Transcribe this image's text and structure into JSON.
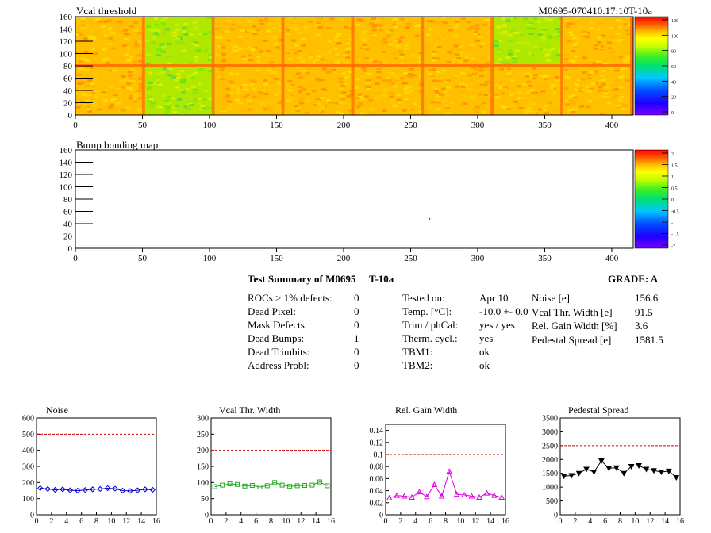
{
  "header": {
    "title_left": "Vcal threshold",
    "title_right": "M0695-070410.17:10T-10a"
  },
  "maps": [
    {
      "id": "vcal",
      "title": "Vcal threshold",
      "x_ticks": [
        0,
        50,
        100,
        150,
        200,
        250,
        300,
        350,
        400
      ],
      "y_ticks": [
        0,
        20,
        40,
        60,
        80,
        100,
        120,
        140,
        160
      ],
      "xlim": [
        0,
        416
      ],
      "ylim": [
        0,
        160
      ],
      "z_ticks": [
        "0",
        "20",
        "40",
        "60",
        "80",
        "100",
        "120"
      ],
      "zlim": [
        0,
        130
      ],
      "type": "heatmap"
    },
    {
      "id": "bump",
      "title": "Bump bonding map",
      "x_ticks": [
        0,
        50,
        100,
        150,
        200,
        250,
        300,
        350,
        400
      ],
      "y_ticks": [
        0,
        20,
        40,
        60,
        80,
        100,
        120,
        140,
        160
      ],
      "xlim": [
        0,
        416
      ],
      "ylim": [
        0,
        160
      ],
      "z_ticks": [
        "-2",
        "-1.5",
        "-1",
        "-0.5",
        "0",
        "0.5",
        "1",
        "1.5",
        "2"
      ],
      "zlim": [
        -2,
        2
      ],
      "type": "heatmap",
      "defect_points": [
        {
          "x": 264,
          "y": 48
        }
      ]
    }
  ],
  "summary": {
    "title": "Test Summary of M0695",
    "test": "T-10a",
    "grade_label": "GRADE:  A",
    "left": [
      {
        "label": "ROCs > 1% defects:",
        "value": "0"
      },
      {
        "label": "Dead Pixel:",
        "value": "0"
      },
      {
        "label": "Mask Defects:",
        "value": "0"
      },
      {
        "label": "Dead Bumps:",
        "value": "1"
      },
      {
        "label": "Dead Trimbits:",
        "value": "0"
      },
      {
        "label": "Address Probl:",
        "value": "0"
      }
    ],
    "middle": [
      {
        "label": "Tested on:",
        "value": "Apr 10"
      },
      {
        "label": "Temp. [°C]:",
        "value": "-10.0 +- 0.0"
      },
      {
        "label": "Trim / phCal:",
        "value": "yes / yes"
      },
      {
        "label": "Therm. cycl.:",
        "value": "yes"
      },
      {
        "label": "TBM1:",
        "value": "ok"
      },
      {
        "label": "TBM2:",
        "value": "ok"
      }
    ],
    "right": [
      {
        "label": "Noise [e]",
        "value": "156.6"
      },
      {
        "label": "Vcal Thr. Width [e]",
        "value": "91.5"
      },
      {
        "label": "Rel. Gain Width [%]",
        "value": "3.6"
      },
      {
        "label": "Pedestal Spread [e]",
        "value": "1581.5"
      }
    ]
  },
  "chart_data": [
    {
      "type": "line",
      "title": "Noise",
      "x": [
        0,
        1,
        2,
        3,
        4,
        5,
        6,
        7,
        8,
        9,
        10,
        11,
        12,
        13,
        14,
        15
      ],
      "values": [
        165,
        160,
        155,
        158,
        152,
        150,
        154,
        158,
        160,
        165,
        162,
        150,
        148,
        152,
        158,
        155
      ],
      "xlim": [
        0,
        16
      ],
      "ylim": [
        0,
        600
      ],
      "x_ticks": [
        0,
        2,
        4,
        6,
        8,
        10,
        12,
        14,
        16
      ],
      "y_ticks": [
        "0",
        "100",
        "200",
        "300",
        "400",
        "500",
        "600"
      ],
      "threshold": 500,
      "color": "#0000cc",
      "marker": "diamond"
    },
    {
      "type": "line",
      "title": "Vcal Thr. Width",
      "x": [
        0,
        1,
        2,
        3,
        4,
        5,
        6,
        7,
        8,
        9,
        10,
        11,
        12,
        13,
        14,
        15
      ],
      "values": [
        87,
        92,
        96,
        94,
        89,
        91,
        86,
        90,
        100,
        92,
        88,
        90,
        91,
        92,
        102,
        90
      ],
      "xlim": [
        0,
        16
      ],
      "ylim": [
        0,
        300
      ],
      "x_ticks": [
        0,
        2,
        4,
        6,
        8,
        10,
        12,
        14,
        16
      ],
      "y_ticks": [
        "0",
        "50",
        "100",
        "150",
        "200",
        "250",
        "300"
      ],
      "threshold": 200,
      "color": "#22aa22",
      "marker": "square"
    },
    {
      "type": "line",
      "title": "Rel. Gain Width",
      "x": [
        0,
        1,
        2,
        3,
        4,
        5,
        6,
        7,
        8,
        9,
        10,
        11,
        12,
        13,
        14,
        15
      ],
      "values": [
        0.028,
        0.032,
        0.031,
        0.029,
        0.038,
        0.03,
        0.05,
        0.031,
        0.072,
        0.034,
        0.033,
        0.031,
        0.029,
        0.036,
        0.032,
        0.029
      ],
      "xlim": [
        0,
        16
      ],
      "ylim": [
        0,
        0.15
      ],
      "x_ticks": [
        0,
        2,
        4,
        6,
        8,
        10,
        12,
        14,
        16
      ],
      "y_ticks": [
        "0",
        "0.02",
        "0.04",
        "0.06",
        "0.08",
        "0.1",
        "0.12",
        "0.14"
      ],
      "threshold": 0.1,
      "color": "#dd00dd",
      "marker": "triangle"
    },
    {
      "type": "line",
      "title": "Pedestal Spread",
      "x": [
        0,
        1,
        2,
        3,
        4,
        5,
        6,
        7,
        8,
        9,
        10,
        11,
        12,
        13,
        14,
        15
      ],
      "values": [
        1400,
        1420,
        1500,
        1650,
        1550,
        1950,
        1680,
        1700,
        1500,
        1750,
        1780,
        1650,
        1600,
        1550,
        1580,
        1350
      ],
      "xlim": [
        0,
        16
      ],
      "ylim": [
        0,
        3500
      ],
      "x_ticks": [
        0,
        2,
        4,
        6,
        8,
        10,
        12,
        14,
        16
      ],
      "y_ticks": [
        "0",
        "500",
        "1000",
        "1500",
        "2000",
        "2500",
        "3000",
        "3500"
      ],
      "threshold": 2500,
      "color": "#000000",
      "marker": "triangle-down"
    }
  ]
}
